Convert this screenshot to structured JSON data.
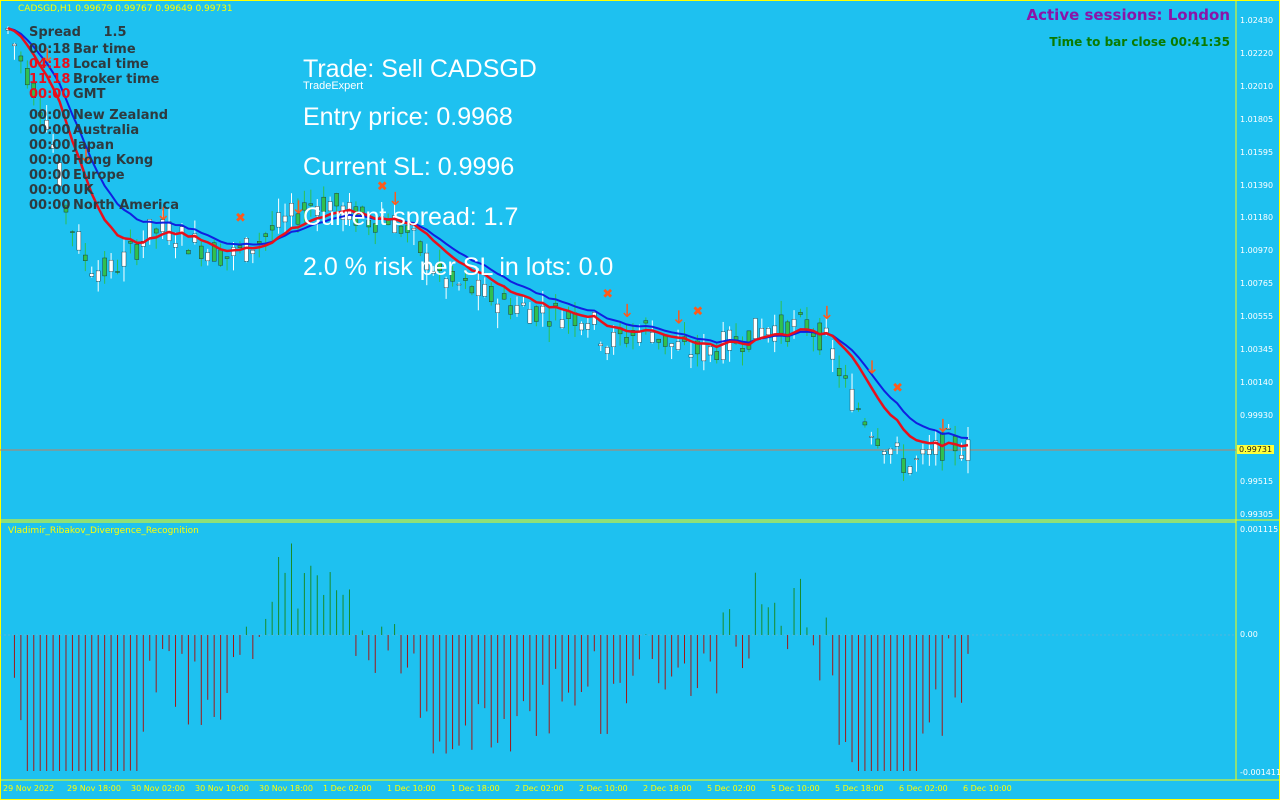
{
  "header": {
    "symbol_info": "CADSGD,H1  0.99679 0.99767 0.99649 0.99731"
  },
  "trade_panel": {
    "title": "Trade: Sell CADSGD",
    "subtitle": "TradeExpert",
    "entry": "Entry price: 0.9968",
    "sl": "Current SL: 0.9996",
    "spread": "Current spread: 1.7",
    "risk": "2.0 % risk per SL in lots: 0.0"
  },
  "clock_panel": {
    "spread_label": "Spread",
    "spread_value": "1.5",
    "rows": [
      {
        "time": "00:18",
        "label": "Bar time",
        "time_color": "#2e3a3f"
      },
      {
        "time": "04:18",
        "label": "Local time",
        "time_color": "#e8101c"
      },
      {
        "time": "11:18",
        "label": "Broker time",
        "time_color": "#e8101c"
      },
      {
        "time": "00:00",
        "label": "GMT",
        "time_color": "#e8101c"
      },
      {
        "time": "00:00",
        "label": "New Zealand",
        "time_color": "#2e3a3f"
      },
      {
        "time": "00:00",
        "label": "Australia",
        "time_color": "#2e3a3f"
      },
      {
        "time": "00:00",
        "label": "Japan",
        "time_color": "#2e3a3f"
      },
      {
        "time": "00:00",
        "label": "Hong Kong",
        "time_color": "#2e3a3f"
      },
      {
        "time": "00:00",
        "label": "Europe",
        "time_color": "#2e3a3f"
      },
      {
        "time": "00:00",
        "label": "UK",
        "time_color": "#2e3a3f"
      },
      {
        "time": "00:00",
        "label": "North America",
        "time_color": "#2e3a3f"
      }
    ]
  },
  "sessions": {
    "text": "Active sessions:  London",
    "bar_close": "Time to bar close 00:41:35"
  },
  "price_axis": {
    "labels": [
      "1.02430",
      "1.02220",
      "1.02010",
      "1.01805",
      "1.01595",
      "1.01390",
      "1.01180",
      "1.00970",
      "1.00765",
      "1.00555",
      "1.00345",
      "1.00140",
      "0.99930",
      "0.99725",
      "0.99515",
      "0.99305"
    ],
    "current": "0.99731"
  },
  "indicator": {
    "name": "Vladimir_Ribakov_Divergence_Recognition",
    "axis_labels": [
      "0.001115",
      "0.00",
      "-0.001411"
    ]
  },
  "time_axis": {
    "labels": [
      "29 Nov 2022",
      "29 Nov 18:00",
      "30 Nov 02:00",
      "30 Nov 10:00",
      "30 Nov 18:00",
      "1 Dec 02:00",
      "1 Dec 10:00",
      "1 Dec 18:00",
      "2 Dec 02:00",
      "2 Dec 10:00",
      "2 Dec 18:00",
      "5 Dec 02:00",
      "5 Dec 10:00",
      "5 Dec 18:00",
      "6 Dec 02:00",
      "6 Dec 10:00"
    ]
  },
  "colors": {
    "background": "#1ec1f0",
    "grid": "#ffff00",
    "bull": "#ffffff",
    "bear": "#30c050",
    "ma_red": "#e8101c",
    "ma_blue": "#1020e0",
    "hist_red": "#a01818",
    "hist_green": "#188c28"
  },
  "chart_data": {
    "type": "candlestick",
    "timeframe": "H1",
    "price_range": [
      0.99305,
      1.0243
    ],
    "indicator_range": [
      -0.001411,
      0.001115
    ],
    "close_path": [
      1.0238,
      1.021,
      1.018,
      1.012,
      1.009,
      1.0085,
      1.0095,
      1.011,
      1.0112,
      1.0105,
      1.01,
      1.0095,
      1.01,
      1.011,
      1.0118,
      1.0128,
      1.013,
      1.0122,
      1.0118,
      1.012,
      1.011,
      1.0092,
      1.0078,
      1.0075,
      1.007,
      1.0065,
      1.0062,
      1.006,
      1.0058,
      1.0057,
      1.004,
      1.0045,
      1.005,
      1.004,
      1.0035,
      1.0035,
      1.004,
      1.0045,
      1.005,
      1.005,
      1.0052,
      1.004,
      1.001,
      0.999,
      0.9975,
      0.9962,
      0.9968,
      0.9978,
      0.9973
    ]
  }
}
